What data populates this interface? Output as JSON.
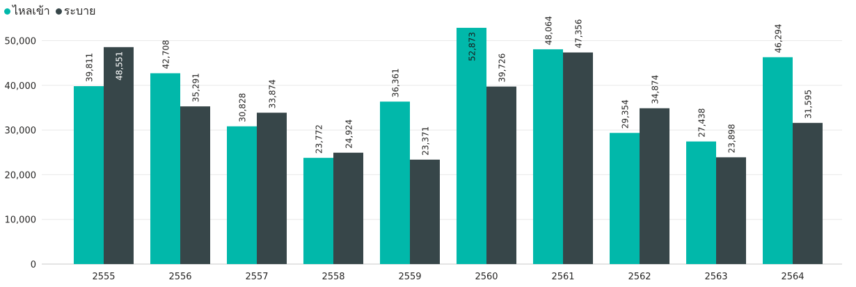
{
  "chart_data": {
    "type": "bar",
    "categories": [
      "2555",
      "2556",
      "2557",
      "2558",
      "2559",
      "2560",
      "2561",
      "2562",
      "2563",
      "2564"
    ],
    "series": [
      {
        "name": "ไหลเข้า",
        "color": "#01b8aa",
        "values": [
          39811,
          42708,
          30828,
          23772,
          36361,
          52873,
          48064,
          29354,
          27438,
          46294
        ],
        "labels": [
          "39,811",
          "42,708",
          "30,828",
          "23,772",
          "36,361",
          "52,873",
          "48,064",
          "29,354",
          "27,438",
          "46,294"
        ]
      },
      {
        "name": "ระบาย",
        "color": "#374649",
        "values": [
          48551,
          35291,
          33874,
          24924,
          23371,
          39726,
          47356,
          34874,
          23898,
          31595
        ],
        "labels": [
          "48,551",
          "35,291",
          "33,874",
          "24,924",
          "23,371",
          "39,726",
          "47,356",
          "34,874",
          "23,898",
          "31,595"
        ]
      }
    ],
    "yticks": [
      0,
      10000,
      20000,
      30000,
      40000,
      50000
    ],
    "ytick_labels": [
      "0",
      "10,000",
      "20,000",
      "30,000",
      "40,000",
      "50,000"
    ],
    "ylim": [
      0,
      53000
    ],
    "grid": true,
    "legend_position": "top-left"
  }
}
